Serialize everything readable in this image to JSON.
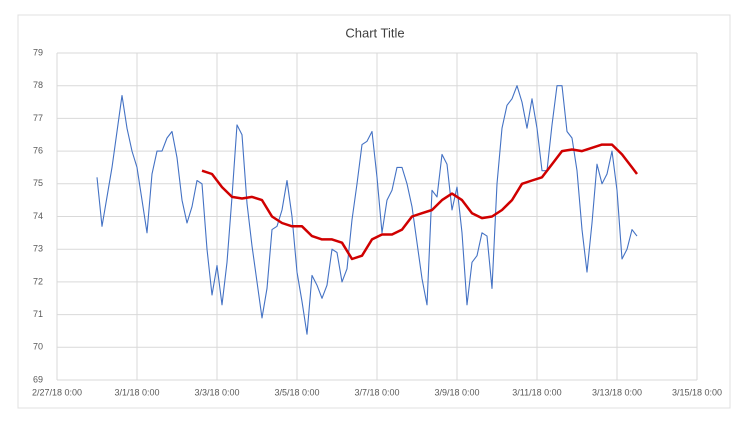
{
  "chart_data": {
    "type": "line",
    "title": "Chart Title",
    "xlim": [
      "2/27/18 0:00",
      "3/15/18 0:00"
    ],
    "xticks": [
      "2/27/18 0:00",
      "3/1/18 0:00",
      "3/3/18 0:00",
      "3/5/18 0:00",
      "3/7/18 0:00",
      "3/9/18 0:00",
      "3/11/18 0:00",
      "3/13/18 0:00",
      "3/15/18 0:00"
    ],
    "ylim": [
      69,
      79
    ],
    "yticks": [
      69,
      70,
      71,
      72,
      73,
      74,
      75,
      76,
      77,
      78,
      79
    ],
    "grid": true,
    "series": [
      {
        "color": "#4472c4",
        "x": [
          "2/28/18 0:00",
          "2/28/18 3:00",
          "2/28/18 6:00",
          "2/28/18 9:00",
          "2/28/18 12:00",
          "2/28/18 15:00",
          "2/28/18 18:00",
          "2/28/18 21:00",
          "3/1/18 0:00",
          "3/1/18 3:00",
          "3/1/18 6:00",
          "3/1/18 9:00",
          "3/1/18 12:00",
          "3/1/18 15:00",
          "3/1/18 18:00",
          "3/1/18 21:00",
          "3/2/18 0:00",
          "3/2/18 3:00",
          "3/2/18 6:00",
          "3/2/18 9:00",
          "3/2/18 12:00",
          "3/2/18 15:00",
          "3/2/18 18:00",
          "3/2/18 21:00",
          "3/3/18 0:00",
          "3/3/18 3:00",
          "3/3/18 6:00",
          "3/3/18 9:00",
          "3/3/18 12:00",
          "3/3/18 15:00",
          "3/3/18 18:00",
          "3/3/18 21:00",
          "3/4/18 0:00",
          "3/4/18 3:00",
          "3/4/18 6:00",
          "3/4/18 9:00",
          "3/4/18 12:00",
          "3/4/18 15:00",
          "3/4/18 18:00",
          "3/4/18 21:00",
          "3/5/18 0:00",
          "3/5/18 3:00",
          "3/5/18 6:00",
          "3/5/18 9:00",
          "3/5/18 12:00",
          "3/5/18 15:00",
          "3/5/18 18:00",
          "3/5/18 21:00",
          "3/6/18 0:00",
          "3/6/18 3:00",
          "3/6/18 6:00",
          "3/6/18 9:00",
          "3/6/18 12:00",
          "3/6/18 15:00",
          "3/6/18 18:00",
          "3/6/18 21:00",
          "3/7/18 0:00",
          "3/7/18 3:00",
          "3/7/18 6:00",
          "3/7/18 9:00",
          "3/7/18 12:00",
          "3/7/18 15:00",
          "3/7/18 18:00",
          "3/7/18 21:00",
          "3/8/18 0:00",
          "3/8/18 3:00",
          "3/8/18 6:00",
          "3/8/18 9:00",
          "3/8/18 12:00",
          "3/8/18 15:00",
          "3/8/18 18:00",
          "3/8/18 21:00",
          "3/9/18 0:00",
          "3/9/18 3:00",
          "3/9/18 6:00",
          "3/9/18 9:00",
          "3/9/18 12:00",
          "3/9/18 15:00",
          "3/9/18 18:00",
          "3/9/18 21:00",
          "3/10/18 0:00",
          "3/10/18 3:00",
          "3/10/18 6:00",
          "3/10/18 9:00",
          "3/10/18 12:00",
          "3/10/18 15:00",
          "3/10/18 18:00",
          "3/10/18 21:00",
          "3/11/18 0:00",
          "3/11/18 3:00",
          "3/11/18 6:00",
          "3/11/18 9:00",
          "3/11/18 12:00",
          "3/11/18 15:00",
          "3/11/18 18:00",
          "3/11/18 21:00",
          "3/12/18 0:00",
          "3/12/18 3:00",
          "3/12/18 6:00",
          "3/12/18 9:00",
          "3/12/18 12:00",
          "3/12/18 15:00",
          "3/12/18 18:00",
          "3/12/18 21:00",
          "3/13/18 0:00",
          "3/13/18 3:00",
          "3/13/18 6:00",
          "3/13/18 9:00",
          "3/13/18 12:00"
        ],
        "values": [
          75.2,
          73.7,
          74.6,
          75.5,
          76.6,
          77.7,
          76.7,
          76.0,
          75.5,
          74.5,
          73.5,
          75.3,
          76.0,
          76.0,
          76.4,
          76.6,
          75.8,
          74.5,
          73.8,
          74.3,
          75.1,
          75.0,
          73.0,
          71.6,
          72.5,
          71.3,
          72.6,
          74.6,
          76.8,
          76.5,
          74.4,
          73.1,
          72.0,
          70.9,
          71.8,
          73.6,
          73.7,
          74.2,
          75.1,
          74.0,
          72.3,
          71.4,
          70.4,
          72.2,
          71.9,
          71.5,
          71.9,
          73.0,
          72.9,
          72.0,
          72.4,
          73.9,
          75.0,
          76.2,
          76.3,
          76.6,
          75.2,
          73.5,
          74.5,
          74.8,
          75.5,
          75.5,
          75.0,
          74.3,
          73.2,
          72.1,
          71.3,
          74.8,
          74.6,
          75.9,
          75.6,
          74.2,
          74.9,
          73.5,
          71.3,
          72.6,
          72.8,
          73.5,
          73.4,
          71.8,
          75.0,
          76.7,
          77.4,
          77.6,
          78.0,
          77.5,
          76.7,
          77.6,
          76.7,
          75.4,
          75.4,
          76.8,
          78.0,
          78.0,
          76.6,
          76.4,
          75.4,
          73.6,
          72.3,
          73.8,
          75.6,
          75.0,
          75.3,
          76.0,
          74.8,
          72.7,
          73.0,
          73.6,
          73.4
        ]
      },
      {
        "color": "#d00000",
        "x": [
          "3/2/18 15:00",
          "3/2/18 21:00",
          "3/3/18 3:00",
          "3/3/18 9:00",
          "3/3/18 15:00",
          "3/3/18 21:00",
          "3/4/18 3:00",
          "3/4/18 9:00",
          "3/4/18 15:00",
          "3/4/18 21:00",
          "3/5/18 3:00",
          "3/5/18 9:00",
          "3/5/18 15:00",
          "3/5/18 21:00",
          "3/6/18 3:00",
          "3/6/18 9:00",
          "3/6/18 15:00",
          "3/6/18 21:00",
          "3/7/18 3:00",
          "3/7/18 9:00",
          "3/7/18 15:00",
          "3/7/18 21:00",
          "3/8/18 3:00",
          "3/8/18 9:00",
          "3/8/18 15:00",
          "3/8/18 21:00",
          "3/9/18 3:00",
          "3/9/18 9:00",
          "3/9/18 15:00",
          "3/9/18 21:00",
          "3/10/18 3:00",
          "3/10/18 9:00",
          "3/10/18 15:00",
          "3/10/18 21:00",
          "3/11/18 3:00",
          "3/11/18 9:00",
          "3/11/18 15:00",
          "3/11/18 21:00",
          "3/12/18 3:00",
          "3/12/18 9:00",
          "3/12/18 15:00",
          "3/12/18 21:00",
          "3/13/18 3:00",
          "3/13/18 9:00",
          "3/13/18 12:00"
        ],
        "values": [
          75.4,
          75.3,
          74.9,
          74.6,
          74.55,
          74.6,
          74.5,
          74.0,
          73.8,
          73.7,
          73.7,
          73.4,
          73.3,
          73.3,
          73.2,
          72.7,
          72.8,
          73.3,
          73.45,
          73.45,
          73.6,
          74.0,
          74.1,
          74.2,
          74.5,
          74.7,
          74.5,
          74.1,
          73.95,
          74.0,
          74.2,
          74.5,
          75.0,
          75.1,
          75.2,
          75.6,
          76.0,
          76.05,
          76.0,
          76.1,
          76.2,
          76.2,
          75.9,
          75.5,
          75.3
        ]
      }
    ]
  }
}
